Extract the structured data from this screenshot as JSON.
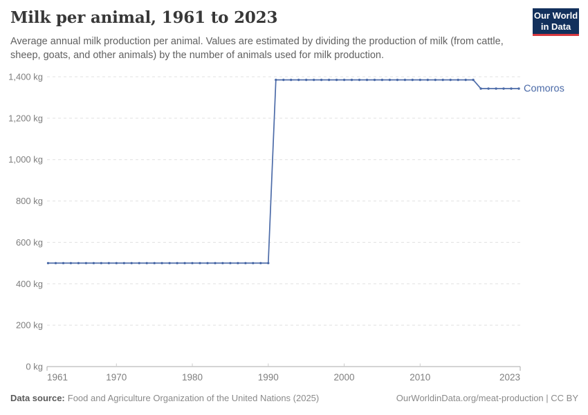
{
  "header": {
    "title": "Milk per animal, 1961 to 2023",
    "subtitle": "Average annual milk production per animal. Values are estimated by dividing the production of milk (from cattle, sheep, goats, and other animals) by the number of animals used for milk production.",
    "logo": {
      "line1": "Our World",
      "line2": "in Data"
    }
  },
  "footer": {
    "source_label": "Data source:",
    "source_text": "Food and Agriculture Organization of the United Nations (2025)",
    "attribution": "OurWorldinData.org/meat-production | CC BY"
  },
  "colors": {
    "line": "#4c6ba8",
    "grid": "#e0e0e0",
    "axis": "#a8a8a8",
    "tick": "#cccccc",
    "axis_text": "#7e7e7e",
    "navy": "#12305c",
    "red": "#d7383f"
  },
  "chart_data": {
    "type": "line",
    "title": "Milk per animal, 1961 to 2023",
    "xlabel": "",
    "ylabel": "kg",
    "grid": "horizontal-dashed",
    "legend_position": "end-of-line",
    "xlim": [
      1961,
      2023
    ],
    "ylim": [
      0,
      1400
    ],
    "x_ticks": [
      1961,
      1970,
      1980,
      1990,
      2000,
      2010,
      2023
    ],
    "x_tick_labels": [
      "1961",
      "1970",
      "1980",
      "1990",
      "2000",
      "2010",
      "2023"
    ],
    "y_ticks": [
      0,
      200,
      400,
      600,
      800,
      1000,
      1200,
      1400
    ],
    "y_tick_labels": [
      "0 kg",
      "200 kg",
      "400 kg",
      "600 kg",
      "800 kg",
      "1,000 kg",
      "1,200 kg",
      "1,400 kg"
    ],
    "series": [
      {
        "name": "Comoros",
        "color": "#4c6ba8",
        "x": [
          1961,
          1962,
          1963,
          1964,
          1965,
          1966,
          1967,
          1968,
          1969,
          1970,
          1971,
          1972,
          1973,
          1974,
          1975,
          1976,
          1977,
          1978,
          1979,
          1980,
          1981,
          1982,
          1983,
          1984,
          1985,
          1986,
          1987,
          1988,
          1989,
          1990,
          1991,
          1992,
          1993,
          1994,
          1995,
          1996,
          1997,
          1998,
          1999,
          2000,
          2001,
          2002,
          2003,
          2004,
          2005,
          2006,
          2007,
          2008,
          2009,
          2010,
          2011,
          2012,
          2013,
          2014,
          2015,
          2016,
          2017,
          2018,
          2019,
          2020,
          2021,
          2022,
          2023
        ],
        "values": [
          500,
          500,
          500,
          500,
          500,
          500,
          500,
          500,
          500,
          500,
          500,
          500,
          500,
          500,
          500,
          500,
          500,
          500,
          500,
          500,
          500,
          500,
          500,
          500,
          500,
          500,
          500,
          500,
          500,
          500,
          1385,
          1385,
          1385,
          1385,
          1385,
          1385,
          1385,
          1385,
          1385,
          1385,
          1385,
          1385,
          1385,
          1385,
          1385,
          1385,
          1385,
          1385,
          1385,
          1385,
          1385,
          1385,
          1385,
          1385,
          1385,
          1385,
          1385,
          1343,
          1343,
          1343,
          1343,
          1343,
          1343
        ]
      }
    ]
  }
}
